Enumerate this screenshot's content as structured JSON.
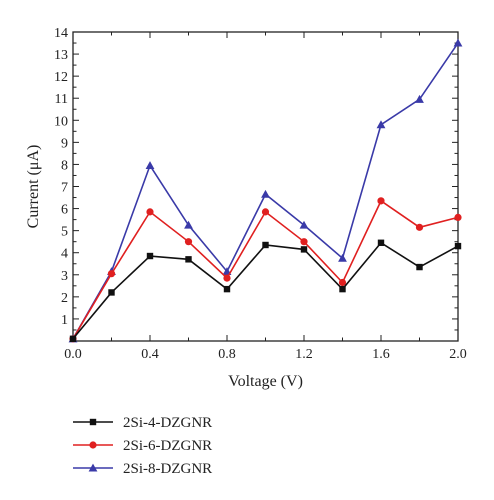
{
  "chart_data": {
    "type": "line",
    "xlabel": "Voltage (V)",
    "ylabel": "Current (μA)",
    "xlim": [
      0.0,
      2.0
    ],
    "ylim": [
      0,
      14
    ],
    "xticks": [
      "0.0",
      "0.4",
      "0.8",
      "1.2",
      "1.6",
      "2.0"
    ],
    "yticks": [
      "1",
      "2",
      "3",
      "4",
      "5",
      "6",
      "7",
      "8",
      "9",
      "10",
      "11",
      "12",
      "13",
      "14"
    ],
    "grid": false,
    "legend_position": "bottom-left",
    "x": [
      0.0,
      0.2,
      0.4,
      0.6,
      0.8,
      1.0,
      1.2,
      1.4,
      1.6,
      1.8,
      2.0
    ],
    "series": [
      {
        "name": "2Si-4-DZGNR",
        "color": "#111111",
        "marker": "square",
        "values": [
          0.1,
          2.2,
          3.85,
          3.7,
          2.35,
          4.35,
          4.15,
          2.35,
          4.45,
          3.35,
          4.3
        ]
      },
      {
        "name": "2Si-6-DZGNR",
        "color": "#e02020",
        "marker": "circle",
        "values": [
          0.1,
          3.05,
          5.85,
          4.5,
          2.85,
          5.85,
          4.5,
          2.65,
          6.35,
          5.15,
          5.6
        ]
      },
      {
        "name": "2Si-8-DZGNR",
        "color": "#3a3aa8",
        "marker": "triangle",
        "values": [
          0.1,
          3.15,
          7.95,
          5.25,
          3.15,
          6.65,
          5.25,
          3.75,
          9.8,
          10.95,
          13.5
        ]
      }
    ]
  }
}
